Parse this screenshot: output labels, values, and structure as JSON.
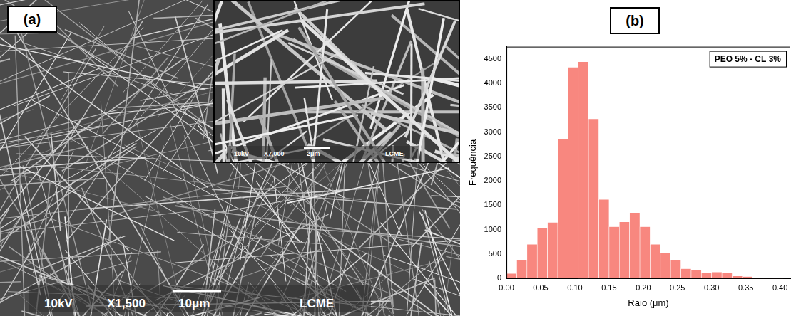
{
  "panel_labels": [
    "(a)",
    "(b)"
  ],
  "micrograph": {
    "main": {
      "texts": [
        "10kV",
        "X1,500",
        "10μm",
        "LCME"
      ]
    },
    "inset": {
      "texts": [
        "10kV",
        "X7,000",
        "2μm",
        "LCME"
      ]
    }
  },
  "chart_data": {
    "type": "histogram",
    "x_label": "Raio (μm)",
    "y_label": "Frequência",
    "annotation": "PEO 5% - CL 3%",
    "bins": [
      0,
      0.015,
      0.03,
      0.045,
      0.06,
      0.075,
      0.09,
      0.105,
      0.12,
      0.135,
      0.15,
      0.165,
      0.18,
      0.195,
      0.21,
      0.225,
      0.24,
      0.255,
      0.27,
      0.285,
      0.3,
      0.315,
      0.33,
      0.345,
      0.36,
      0.375,
      0.39,
      0.405
    ],
    "values": [
      100,
      370,
      700,
      1040,
      1150,
      2850,
      4330,
      4440,
      3270,
      1620,
      1060,
      1160,
      1350,
      1060,
      700,
      520,
      370,
      200,
      170,
      110,
      130,
      110,
      50,
      40,
      20,
      15,
      10
    ],
    "color": "#f8877f",
    "xlim": [
      0,
      0.415
    ],
    "xticks": [
      {
        "value": 0,
        "label": "0.00"
      },
      {
        "value": 0.05,
        "label": "0.05"
      },
      {
        "value": 0.1,
        "label": "0.10"
      },
      {
        "value": 0.15,
        "label": "0.15"
      },
      {
        "value": 0.2,
        "label": "0.20"
      },
      {
        "value": 0.25,
        "label": "0.25"
      },
      {
        "value": 0.3,
        "label": "0.30"
      },
      {
        "value": 0.35,
        "label": "0.35"
      },
      {
        "value": 0.4,
        "label": "0.40"
      }
    ],
    "ylim": [
      0,
      4750
    ],
    "yticks": [
      0,
      500,
      1000,
      1500,
      2000,
      2500,
      3000,
      3500,
      4000,
      4500
    ],
    "grid": false
  }
}
